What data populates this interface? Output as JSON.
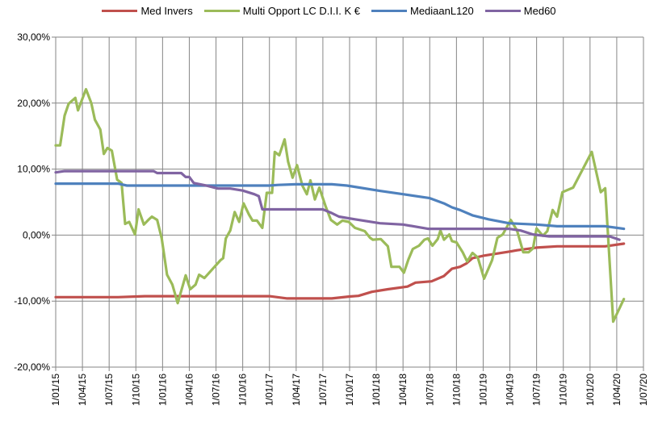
{
  "chart_data": {
    "type": "line",
    "title": "",
    "xlabel": "",
    "ylabel": "",
    "x_unit": "months since 1/01/15",
    "xlim": [
      0,
      66
    ],
    "ylim": [
      -20,
      30
    ],
    "y_ticks": [
      30,
      20,
      10,
      0,
      -10,
      -20
    ],
    "y_tick_labels": [
      "30,00%",
      "20,00%",
      "10,00%",
      "0,00%",
      "-10,00%",
      "-20,00%"
    ],
    "x_tick_labels": [
      "1/01/15",
      "1/04/15",
      "1/07/15",
      "1/10/15",
      "1/01/16",
      "1/04/16",
      "1/07/16",
      "1/10/16",
      "1/01/17",
      "1/04/17",
      "1/07/17",
      "1/10/17",
      "1/01/18",
      "1/04/18",
      "1/07/18",
      "1/10/18",
      "1/01/19",
      "1/04/19",
      "1/07/19",
      "1/10/19",
      "1/01/20",
      "1/04/20",
      "1/07/20"
    ],
    "grid": true,
    "legend_position": "top",
    "series": [
      {
        "name": "Med Invers",
        "color": "#C0504D",
        "x": [
          0,
          7,
          10,
          24,
          26,
          31,
          33,
          34,
          35.5,
          37.3,
          39.5,
          40.4,
          42.2,
          43.6,
          44.5,
          45.4,
          46.1,
          46.8,
          48.1,
          50.9,
          51.8,
          54,
          56.3,
          61.7,
          63.8
        ],
        "y": [
          -9.4,
          -9.4,
          -9.25,
          -9.25,
          -9.6,
          -9.6,
          -9.3,
          -9.2,
          -8.6,
          -8.2,
          -7.8,
          -7.2,
          -7.0,
          -6.2,
          -5.1,
          -4.8,
          -4.3,
          -3.5,
          -3.1,
          -2.5,
          -2.3,
          -1.9,
          -1.7,
          -1.7,
          -1.3
        ]
      },
      {
        "name": "Multi Opport LC D.I.I. K €",
        "color": "#9BBB59",
        "x": [
          0,
          0.5,
          1,
          1.45,
          2.2,
          2.5,
          3.4,
          4,
          4.4,
          5,
          5.4,
          5.8,
          6.3,
          6.9,
          7.4,
          7.8,
          8.25,
          8.9,
          9.3,
          9.9,
          10.4,
          10.8,
          11.4,
          11.9,
          12.5,
          13.1,
          13.7,
          14.6,
          15.1,
          15.7,
          16.1,
          16.7,
          18.5,
          18.8,
          19.1,
          19.6,
          20.1,
          20.6,
          21.1,
          21.7,
          22.1,
          22.6,
          23.2,
          23.7,
          24.3,
          24.6,
          25.1,
          25.7,
          26.1,
          26.6,
          27.1,
          27.7,
          28.2,
          28.6,
          29.1,
          29.6,
          30.3,
          30.9,
          31.6,
          32.2,
          32.9,
          33.6,
          34.7,
          35.3,
          35.6,
          36.5,
          37.3,
          37.7,
          38.6,
          39.1,
          39.6,
          40.1,
          40.8,
          41.4,
          41.8,
          42.3,
          42.9,
          43.2,
          43.6,
          44.2,
          44.5,
          45,
          45.7,
          46.2,
          46.8,
          47.4,
          48.1,
          49,
          49.6,
          50.2,
          51.1,
          51.8,
          52.5,
          53.1,
          53.6,
          54,
          54.7,
          55.2,
          55.8,
          56.3,
          56.9,
          58.1,
          60.2,
          61.2,
          61.7,
          62.6,
          63.8
        ],
        "y": [
          13.6,
          13.6,
          18.1,
          19.9,
          20.8,
          18.9,
          22.1,
          20,
          17.5,
          16,
          12.3,
          13.2,
          12.8,
          8.4,
          7.9,
          1.7,
          2,
          0.1,
          3.9,
          1.6,
          2.3,
          2.8,
          2.3,
          -0.5,
          -6,
          -7.5,
          -10.3,
          -6.1,
          -8.2,
          -7.5,
          -6,
          -6.5,
          -3.8,
          -3.5,
          -0.5,
          0.7,
          3.5,
          2,
          4.8,
          3.1,
          2.2,
          2.2,
          1.1,
          6.4,
          6.4,
          12.6,
          12.1,
          14.5,
          11.1,
          8.7,
          10.6,
          7.5,
          6.2,
          8.3,
          5.4,
          7.2,
          4.4,
          2.3,
          1.6,
          2.2,
          2,
          1.1,
          0.6,
          -0.4,
          -0.7,
          -0.6,
          -1.7,
          -4.8,
          -4.8,
          -5.7,
          -3.7,
          -2.1,
          -1.6,
          -0.7,
          -0.5,
          -1.6,
          -0.6,
          0.7,
          -0.7,
          0.1,
          -0.9,
          -1.1,
          -2.6,
          -4,
          -2.7,
          -3.4,
          -6.6,
          -3.8,
          -0.4,
          0.1,
          2.3,
          0.7,
          -2.6,
          -2.6,
          -2,
          1,
          -0.1,
          0.6,
          3.8,
          2.8,
          6.5,
          7.2,
          12.6,
          6.5,
          7.1,
          -13.1,
          -9.7
        ]
      },
      {
        "name": "MediaanL120",
        "color": "#4F81BD",
        "x": [
          0,
          7,
          8,
          24,
          25,
          27,
          31,
          32.7,
          36.4,
          39,
          42,
          43.6,
          44.5,
          45.4,
          46.8,
          48.6,
          50.9,
          54,
          56.3,
          61.7,
          63.8
        ],
        "y": [
          7.8,
          7.8,
          7.5,
          7.5,
          7.6,
          7.7,
          7.7,
          7.5,
          6.7,
          6.2,
          5.6,
          4.8,
          4.2,
          3.8,
          3.0,
          2.4,
          1.8,
          1.6,
          1.35,
          1.35,
          0.95
        ]
      },
      {
        "name": "Med60",
        "color": "#8064A2",
        "x": [
          0,
          1,
          11,
          11.4,
          14.1,
          14.6,
          15,
          15.5,
          16.9,
          18.2,
          19.6,
          21,
          22.3,
          22.8,
          23.2,
          30,
          30.9,
          31.8,
          33.6,
          36.4,
          39,
          41.8,
          50.9,
          52.2,
          53.6,
          55.4,
          62.2,
          63.3
        ],
        "y": [
          9.5,
          9.7,
          9.7,
          9.4,
          9.4,
          8.8,
          8.8,
          7.9,
          7.5,
          7.05,
          7.05,
          6.75,
          6.2,
          5.9,
          3.9,
          3.9,
          3.4,
          2.8,
          2.4,
          1.8,
          1.6,
          0.95,
          0.95,
          0.7,
          0.1,
          -0.2,
          -0.2,
          -0.7
        ]
      }
    ]
  }
}
